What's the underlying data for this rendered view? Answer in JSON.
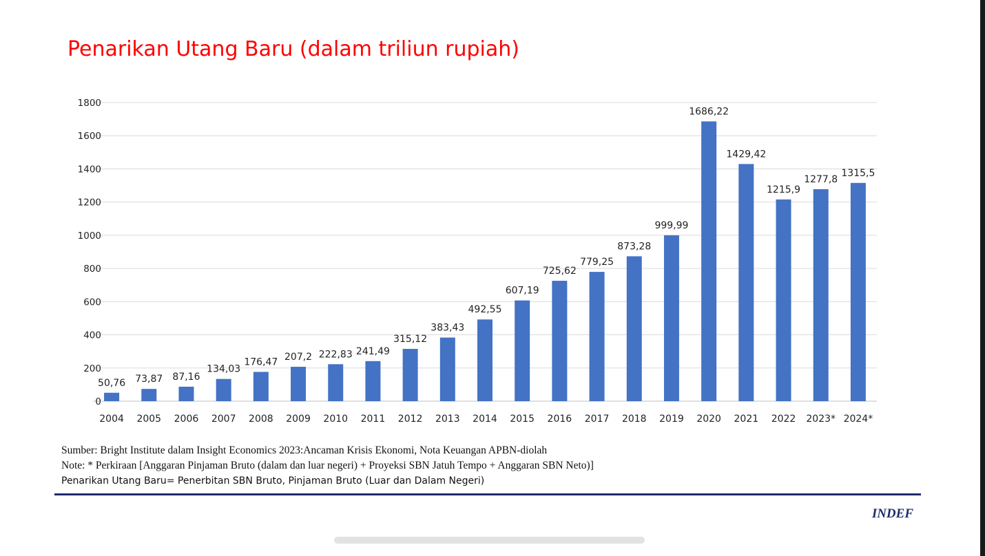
{
  "title": "Penarikan Utang Baru (dalam triliun rupiah)",
  "chart_data": {
    "type": "bar",
    "title": "",
    "xlabel": "",
    "ylabel": "",
    "ylim": [
      0,
      1800
    ],
    "yticks": [
      "0",
      "200",
      "400",
      "600",
      "800",
      "1000",
      "1200",
      "1400",
      "1600",
      "1800"
    ],
    "grid": true,
    "bar_color": "#4472c4",
    "categories": [
      "2004",
      "2005",
      "2006",
      "2007",
      "2008",
      "2009",
      "2010",
      "2011",
      "2012",
      "2013",
      "2014",
      "2015",
      "2016",
      "2017",
      "2018",
      "2019",
      "2020",
      "2021",
      "2022",
      "2023*",
      "2024*"
    ],
    "values": [
      50.76,
      73.87,
      87.16,
      134.03,
      176.47,
      207.2,
      222.83,
      241.49,
      315.12,
      383.43,
      492.55,
      607.19,
      725.62,
      779.25,
      873.28,
      999.99,
      1686.22,
      1429.42,
      1215.9,
      1277.8,
      1315.5
    ],
    "data_labels": [
      "50,76",
      "73,87",
      "87,16",
      "134,03",
      "176,47",
      "207,2",
      "222,83",
      "241,49",
      "315,12",
      "383,43",
      "492,55",
      "607,19",
      "725,62",
      "779,25",
      "873,28",
      "999,99",
      "1686,22",
      "1429,42",
      "1215,9",
      "1277,8",
      "1315,5"
    ]
  },
  "notes": {
    "source": "Sumber: Bright Institute dalam Insight Economics 2023:Ancaman Krisis Ekonomi, Nota Keuangan APBN-diolah",
    "note": "Note: * Perkiraan [Anggaran Pinjaman Bruto (dalam dan luar negeri) + Proyeksi SBN Jatuh Tempo + Anggaran SBN Neto)]",
    "definition": "Penarikan Utang Baru= Penerbitan SBN Bruto, Pinjaman Bruto (Luar dan Dalam Negeri)"
  },
  "brand": "INDEF"
}
